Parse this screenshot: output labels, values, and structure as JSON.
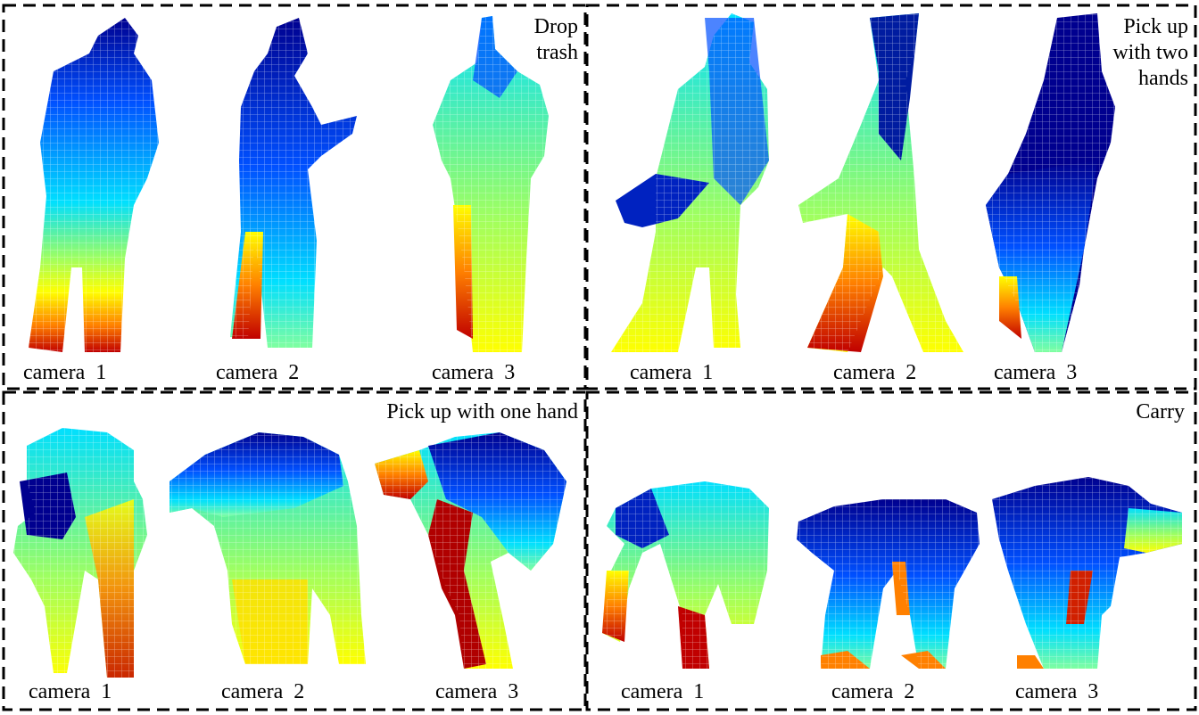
{
  "panels": [
    {
      "action": [
        "Drop",
        "trash"
      ],
      "cameras": [
        "camera  1",
        "camera  2",
        "camera  3"
      ]
    },
    {
      "action": [
        "Pick up",
        "with two",
        "hands"
      ],
      "cameras": [
        "camera  1",
        "camera  2",
        "camera  3"
      ]
    },
    {
      "action": [
        "Pick up with one hand"
      ],
      "cameras": [
        "camera  1",
        "camera  2",
        "camera  3"
      ]
    },
    {
      "action": [
        "Carry"
      ],
      "cameras": [
        "camera  1",
        "camera  2",
        "camera  3"
      ]
    }
  ],
  "colormap": [
    "#00008f",
    "#0050ff",
    "#00dfff",
    "#a0ff60",
    "#ffff00",
    "#ff8000",
    "#c00000"
  ]
}
